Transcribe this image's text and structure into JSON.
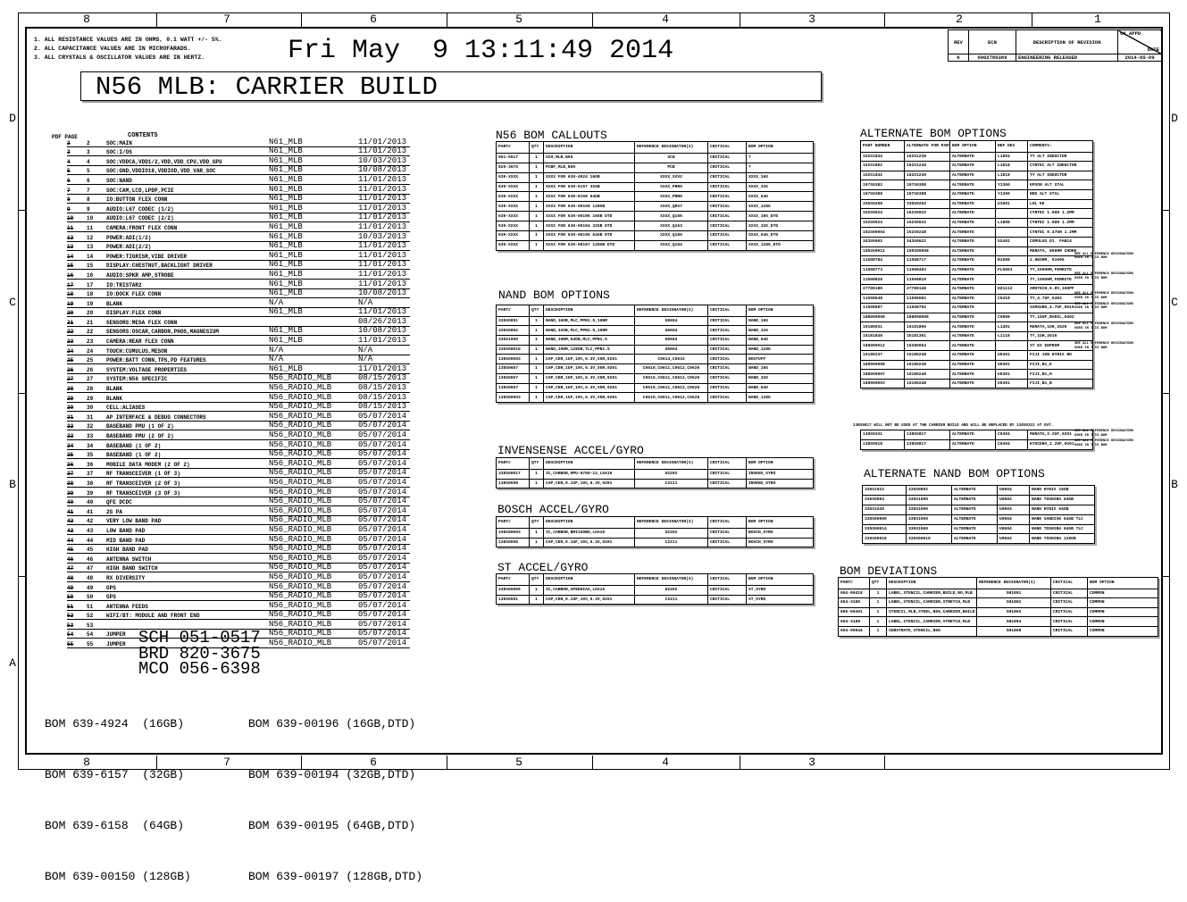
{
  "zones": {
    "top": [
      "8",
      "7",
      "6",
      "5",
      "4",
      "3",
      "2",
      "1"
    ],
    "bottom": [
      "8",
      "7",
      "6",
      "5",
      "4",
      "3"
    ],
    "left": [
      "D",
      "C",
      "B",
      "A"
    ],
    "right": [
      "D",
      "C",
      "B"
    ]
  },
  "notes": [
    "1. ALL RESISTANCE VALUES ARE IN OHMS, 0.1 WATT +/- 5%.",
    "2. ALL CAPACITANCE VALUES ARE IN MICROFARADS.",
    "3. ALL CRYSTALS & OSCILLATOR VALUES ARE IN HERTZ."
  ],
  "datetime": "Fri May  9 13:11:49 2014",
  "title": "N56 MLB: CARRIER BUILD",
  "revision": {
    "headers": [
      "REV",
      "ECN",
      "DESCRIPTION OF REVISION",
      "CK APPD",
      "DATE"
    ],
    "row": [
      "6",
      "0002780389",
      "ENGINEERING RELEASED",
      "2014-05-09"
    ]
  },
  "contents": {
    "header_pdf": "PDF PAGE",
    "header_contents": "CONTENTS",
    "rows": [
      [
        "2",
        "SOC:MAIN",
        "N61_MLB",
        "11/01/2013"
      ],
      [
        "3",
        "SOC:I/OS",
        "N61_MLB",
        "11/01/2013"
      ],
      [
        "4",
        "SOC:VDDCA,VDD1/2,VDD,VDD_CPU,VDD_GPU",
        "N61_MLB",
        "10/03/2013"
      ],
      [
        "5",
        "SOC:GND,VDDIO18,VDDIOD,VDD_VAR_SOC",
        "N61_MLB",
        "10/08/2013"
      ],
      [
        "6",
        "SOC:NAND",
        "N61_MLB",
        "11/01/2013"
      ],
      [
        "7",
        "SOC:CAM,LCD,LPDP,PCIE",
        "N61_MLB",
        "11/01/2013"
      ],
      [
        "8",
        "IO:BUTTON FLEX CONN",
        "N61_MLB",
        "11/01/2013"
      ],
      [
        "9",
        "AUDIO:L67 CODEC (1/2)",
        "N61_MLB",
        "11/01/2013"
      ],
      [
        "10",
        "AUDIO:L67 CODEC (2/2)",
        "N61_MLB",
        "11/01/2013"
      ],
      [
        "11",
        "CAMERA:FRONT FLEX CONN",
        "N61_MLB",
        "11/01/2013"
      ],
      [
        "12",
        "POWER:ADI(1/2)",
        "N61_MLB",
        "10/03/2013"
      ],
      [
        "13",
        "POWER:ADI(2/2)",
        "N61_MLB",
        "11/01/2013"
      ],
      [
        "14",
        "POWER:TIGRISR,VIBE DRIVER",
        "N61_MLB",
        "11/01/2013"
      ],
      [
        "15",
        "DISPLAY:CHESTNUT,BACKLIGHT DRIVER",
        "N61_MLB",
        "11/01/2013"
      ],
      [
        "16",
        "AUDIO:SPKR AMP,STROBE",
        "N61_MLB",
        "11/01/2013"
      ],
      [
        "17",
        "IO:TRISTAR2",
        "N61_MLB",
        "11/01/2013"
      ],
      [
        "18",
        "IO:DOCK FLEX CONN",
        "N61_MLB",
        "10/08/2013"
      ],
      [
        "19",
        "BLANK",
        "N/A",
        "N/A"
      ],
      [
        "20",
        "DISPLAY:FLEX CONN",
        "N61_MLB",
        "11/01/2013"
      ],
      [
        "21",
        "SENSORS:MESA FLEX CONN",
        "",
        "08/26/2013"
      ],
      [
        "22",
        "SENSORS:OSCAR,CARBON,PHOS,MAGNESIUM",
        "N61_MLB",
        "10/08/2013"
      ],
      [
        "23",
        "CAMERA:REAR FLEX CONN",
        "N61_MLB",
        "11/01/2013"
      ],
      [
        "24",
        "TOUCH:CUMULUS,MESON",
        "N/A",
        "N/A"
      ],
      [
        "25",
        "POWER:BATT CONN,TPS,PD FEATURES",
        "N/A",
        "N/A"
      ],
      [
        "26",
        "SYSTEM:VOLTAGE PROPERTIES",
        "N61_MLB",
        "11/01/2013"
      ],
      [
        "27",
        "SYSTEM:N56 SPECIFIC",
        "N56_RADIO_MLB",
        "08/15/2013"
      ],
      [
        "28",
        "BLANK",
        "N56_RADIO_MLB",
        "08/15/2013"
      ],
      [
        "29",
        "BLANK",
        "N56_RADIO_MLB",
        "08/15/2013"
      ],
      [
        "30",
        "CELL:ALIASES",
        "N56_RADIO_MLB",
        "08/15/2013"
      ],
      [
        "31",
        "AP INTERFACE & DEBUG CONNECTORS",
        "N56_RADIO_MLB",
        "05/07/2014"
      ],
      [
        "32",
        "BASEBAND PMU (1 OF 2)",
        "N56_RADIO_MLB",
        "05/07/2014"
      ],
      [
        "33",
        "BASEBAND PMU (2 OF 2)",
        "N56_RADIO_MLB",
        "05/07/2014"
      ],
      [
        "34",
        "BASEBAND (1 OF 2)",
        "N56_RADIO_MLB",
        "05/07/2014"
      ],
      [
        "35",
        "BASEBAND (1 OF 2)",
        "N56_RADIO_MLB",
        "05/07/2014"
      ],
      [
        "36",
        "MOBILE DATA MODEM (2 OF 2)",
        "N56_RADIO_MLB",
        "05/07/2014"
      ],
      [
        "37",
        "RF TRANSCEIVER (1 OF 3)",
        "N56_RADIO_MLB",
        "05/07/2014"
      ],
      [
        "38",
        "RF TRANSCEIVER (2 OF 3)",
        "N56_RADIO_MLB",
        "05/07/2014"
      ],
      [
        "39",
        "RF TRANSCEIVER (3 OF 3)",
        "N56_RADIO_MLB",
        "05/07/2014"
      ],
      [
        "40",
        "QFE DCDC",
        "N56_RADIO_MLB",
        "05/07/2014"
      ],
      [
        "41",
        "2G PA",
        "N56_RADIO_MLB",
        "05/07/2014"
      ],
      [
        "42",
        "VERY LOW BAND PAD",
        "N56_RADIO_MLB",
        "05/07/2014"
      ],
      [
        "43",
        "LOW BAND PAD",
        "N56_RADIO_MLB",
        "05/07/2014"
      ],
      [
        "44",
        "MID BAND PAD",
        "N56_RADIO_MLB",
        "05/07/2014"
      ],
      [
        "45",
        "HIGH BAND PAD",
        "N56_RADIO_MLB",
        "05/07/2014"
      ],
      [
        "46",
        "ANTENNA SWITCH",
        "N56_RADIO_MLB",
        "05/07/2014"
      ],
      [
        "47",
        "HIGH BAND SWITCH",
        "N56_RADIO_MLB",
        "05/07/2014"
      ],
      [
        "48",
        "RX DIVERSITY",
        "N56_RADIO_MLB",
        "05/07/2014"
      ],
      [
        "49",
        "GPS",
        "N56_RADIO_MLB",
        "05/07/2014"
      ],
      [
        "50",
        "GPS",
        "N56_RADIO_MLB",
        "05/07/2014"
      ],
      [
        "51",
        "ANTENNA FEEDS",
        "N56_RADIO_MLB",
        "05/07/2014"
      ],
      [
        "52",
        "WIFI/BT: MODULE AND FRONT END",
        "N56_RADIO_MLB",
        "05/07/2014"
      ],
      [
        "53",
        "",
        "N56_RADIO_MLB",
        "05/07/2014"
      ],
      [
        "54",
        "JUMPER",
        "N56_RADIO_MLB",
        "05/07/2014"
      ],
      [
        "55",
        "JUMPER",
        "N56_RADIO_MLB",
        "05/07/2014"
      ]
    ]
  },
  "bom_header": [
    "PART#",
    "QTY",
    "DESCRIPTION",
    "REFERENCE DESIGNATOR(S)",
    "CRITICAL",
    "BOM OPTION"
  ],
  "n56_bom_callouts": {
    "title": "N56 BOM CALLOUTS",
    "rows": [
      [
        "051-0517",
        "1",
        "SCH,MLB,N56",
        "SCH",
        "CRITICAL",
        "?"
      ],
      [
        "820-3675",
        "1",
        "PCBF,MLB,N56",
        "PCB",
        "CRITICAL",
        "?"
      ],
      [
        "639-XXXX",
        "1",
        "XXXX FOR 639-4924 16GB",
        "XXXX_XXV2",
        "CRITICAL",
        "XXXX_16G"
      ],
      [
        "639-XXXX",
        "1",
        "XXXX FOR 639-6157 32GB",
        "XXXX_PRR9",
        "CRITICAL",
        "XXXX_32G"
      ],
      [
        "639-XXXX",
        "1",
        "XXXX FOR 639-6158 64GB",
        "XXXX_PRR0",
        "CRITICAL",
        "XXXX_64G"
      ],
      [
        "639-XXXX",
        "1",
        "XXXX FOR 639-00150 128GB",
        "XXXX_Q0S7",
        "CRITICAL",
        "XXXX_128G"
      ],
      [
        "639-XXXX",
        "1",
        "XXXX FOR 639-00196 16GB DTD",
        "XXXX_Q166",
        "CRITICAL",
        "XXXX_16G_DTD"
      ],
      [
        "639-XXXX",
        "1",
        "XXXX FOR 639-00194 32GB DTD",
        "XXXX_Q163",
        "CRITICAL",
        "XXXX_32G_DTD"
      ],
      [
        "639-XXXX",
        "1",
        "XXXX FOR 639-00195 64GB DTD",
        "XXXX_Q165",
        "CRITICAL",
        "XXXX_64G_DTD"
      ],
      [
        "639-XXXX",
        "1",
        "XXXX FOR 639-00197 128GB DTD",
        "XXXX_Q164",
        "CRITICAL",
        "XXXX_128G_DTD"
      ]
    ]
  },
  "nand_bom_options": {
    "title": "NAND BOM OPTIONS",
    "rows": [
      [
        "335S0891",
        "1",
        "NAND,16GB,MLC,PPN1.5,19NM",
        "U0604",
        "CRITICAL",
        "NAND_16G"
      ],
      [
        "335S0892",
        "1",
        "NAND,32GB,MLC,PPN1.5,19NM",
        "U0604",
        "CRITICAL",
        "NAND_32G"
      ],
      [
        "335S1000",
        "1",
        "NAND,19NM,64GB,MLC,PPN1.5",
        "U0604",
        "CRITICAL",
        "NAND_64G"
      ],
      [
        "335S00010",
        "1",
        "NAND,19NM,128GB,TLC,PPN1.5",
        "U0604",
        "CRITICAL",
        "NAND_128G"
      ],
      [
        "138S00003",
        "1",
        "CAP,CER,1UF,10%,6.3V,X5R,0201",
        "C0614,C0633",
        "CRITICAL",
        "NOSTUFF"
      ],
      [
        "138S0657",
        "1",
        "CAP,CER,1UF,10%,6.3V,X5R,0201",
        "C0610,C0611,C0612,C0626",
        "CRITICAL",
        "NAND_16G"
      ],
      [
        "138S0657",
        "1",
        "CAP,CER,1UF,10%,6.3V,X5R,0201",
        "C0610,C0611,C0612,C0626",
        "CRITICAL",
        "NAND_32G"
      ],
      [
        "138S0657",
        "1",
        "CAP,CER,1UF,10%,6.3V,X5R,0201",
        "C0610,C0611,C0612,C0626",
        "CRITICAL",
        "NAND_64G"
      ],
      [
        "138S00003",
        "1",
        "CAP,CER,1UF,10%,6.3V,X5R,0201",
        "C0610,C0611,C0612,C0626",
        "CRITICAL",
        "NAND_128G"
      ]
    ]
  },
  "invensense": {
    "title": "INVENSENSE ACCEL/GYRO",
    "rows": [
      [
        "338S00017",
        "1",
        "IC,CARBON,MPU-6700-12,LGA16",
        "U2202",
        "CRITICAL",
        "INVENS_GYRO"
      ],
      [
        "138S0598",
        "1",
        "CAP,CER,0.1UF,10%,6.3V,0201",
        "C2211",
        "CRITICAL",
        "INVENS_GYRO"
      ]
    ]
  },
  "bosch": {
    "title": "BOSCH ACCEL/GYRO",
    "rows": [
      [
        "338S00003",
        "1",
        "IC,CARBON,BMI160BD,LGA16",
        "U2202",
        "CRITICAL",
        "BOSCH_GYRO"
      ],
      [
        "138S0598",
        "1",
        "CAP,CER,0.1UF,10%,6.3V,0201",
        "C2211",
        "CRITICAL",
        "BOSCH_GYRO"
      ]
    ]
  },
  "st": {
    "title": "ST ACCEL/GYRO",
    "rows": [
      [
        "338S00009",
        "1",
        "IC,CARBON,AP8D8IAA,LGA16",
        "U2202",
        "CRITICAL",
        "ST_GYRO"
      ],
      [
        "138S0591",
        "1",
        "CAP,CER,0.1UF,10%,6.3V,0201",
        "C2211",
        "CRITICAL",
        "ST_GYRO"
      ]
    ]
  },
  "alternate_bom_options": {
    "title": "ALTERNATE BOM OPTIONS",
    "header": [
      "PART NUMBER",
      "ALTERNATE FOR PART NUMBER",
      "BOM OPTION",
      "REF DES",
      "COMMENTS:"
    ],
    "rows": [
      [
        "152S1844",
        "152S1238",
        "ALTERNATE",
        "L1804",
        "TY ALT INDUCTOR",
        ""
      ],
      [
        "152S1802",
        "152S1249",
        "ALTERNATE",
        "L1818",
        "CYNTEC ALT INDUCTOR",
        ""
      ],
      [
        "152S1842",
        "152S1249",
        "ALTERNATE",
        "L1818",
        "TY ALT INDUCTOR",
        ""
      ],
      [
        "197S0382",
        "197S0388",
        "ALTERNATE",
        "Y1300",
        "EPSON ALT XTAL",
        ""
      ],
      [
        "197S0388",
        "197S0388",
        "ALTERNATE",
        "Y1300",
        "NDK ALT XTAL",
        ""
      ],
      [
        "335S0208",
        "335S0202",
        "ALTERNATE",
        "U1601",
        "LOL EE",
        ""
      ],
      [
        "152S0024",
        "152S0022",
        "ALTERNATE",
        "",
        "CYNTEC 1.0UH 1.2MM",
        ""
      ],
      [
        "152S0024",
        "152S0022",
        "ALTERNATE",
        "L1808",
        "CYNTEC 1.0UH 1.2MM",
        ""
      ],
      [
        "152S00004",
        "152S0248",
        "ALTERNATE",
        "",
        "CYNTEC 0.47UH 1.2MM",
        ""
      ],
      [
        "343S0602",
        "343S0622",
        "ALTERNATE",
        "U2401",
        "CUMULUS D1. FAB14",
        ""
      ],
      [
        "155S00012",
        "155S00008",
        "ALTERNATE",
        "",
        "MURATA, 850HM CHOKE",
        "SEE ALL REFERENCE DESIGNATORS USED IN THIS BOM"
      ],
      [
        "11508784",
        "11508717",
        "ALTERNATE",
        "R1008",
        "2.8KOHM, 01005",
        ""
      ],
      [
        "11508773",
        "11508483",
        "ALTERNATE",
        "FL0601",
        "TY,150OHM,FERRITE",
        "SEE ALL REFERENCE DESIGNATORS USED IN THIS BOM"
      ],
      [
        "11508828",
        "11508810",
        "ALTERNATE",
        "",
        "TY,150OHM,FERRITE",
        ""
      ],
      [
        "27780180",
        "27780140",
        "ALTERNATE",
        "DZ1112",
        "AMOTECH,6.8V,100PF",
        "SEE ALL REFERENCE DESIGNATORS USED IN THIS BOM"
      ],
      [
        "11508648",
        "11508682",
        "ALTERNATE",
        "C0318",
        "TY,4.7UF,0402",
        "SEE ALL REFERENCE DESIGNATORS USED IN THIS BOM"
      ],
      [
        "11508687",
        "11508702",
        "ALTERNATE",
        "",
        "SAMSUNG,4.7UF,0610",
        ""
      ],
      [
        "188000008",
        "188000008",
        "ALTERNATE",
        "C0808",
        "TY,15UF,RADIL,0402",
        "SEE ALL REFERENCE DESIGNATORS USED IN THIS BOM"
      ],
      [
        "15180031",
        "15181800",
        "ALTERNATE",
        "L1401",
        "MURATA,1UH,2520",
        ""
      ],
      [
        "15181848",
        "15181301",
        "ALTERNATE",
        "L1118",
        "TY,1UH,2016",
        "SEE ALL REFERENCE DESIGNATORS USED IN THIS BOM"
      ],
      [
        "188000012",
        "15280064",
        "ALTERNATE",
        "",
        "ST EX EEPROM",
        ""
      ],
      [
        "15180247",
        "15180248",
        "ALTERNATE",
        "U0301",
        "FIJI 1GB HYNIX BD",
        ""
      ],
      [
        "188000008",
        "15180248",
        "ALTERNATE",
        "U0301",
        "FIJI,B1,E",
        ""
      ],
      [
        "188000007",
        "15180248",
        "ALTERNATE",
        "U0301",
        "FIJI,B1,H",
        ""
      ],
      [
        "188000003",
        "15180248",
        "ALTERNATE",
        "U0301",
        "FIJI,B1,B",
        ""
      ]
    ]
  },
  "alt_note": "138S0817 WILL NOT BE USED AT THE CARRIER BUILD AND WILL BE REPLACED BY 138S0331 AT DVT.",
  "alt_extra_rows": [
    [
      "138S0331",
      "138S0817",
      "ALTERNATE",
      "C0304",
      "MURATA,2.2UF,0201",
      "SEE ALL REFERENCE DESIGNATORS USED IN THIS BOM"
    ],
    [
      "138S0018",
      "138S0817",
      "ALTERNATE",
      "C0304",
      "KYOCERA,2.2UF,0201",
      "SEE ALL REFERENCE DESIGNATORS USED IN THIS BOM"
    ]
  ],
  "alternate_nand": {
    "title": "ALTERNATE NAND BOM OPTIONS",
    "rows": [
      [
        "335S1022",
        "335S0892",
        "ALTERNATE",
        "U0604",
        "NAND HYNIX 16GB"
      ],
      [
        "335S0894",
        "335S1000",
        "ALTERNATE",
        "U0604",
        "NAND TOSHIBA 64GB"
      ],
      [
        "335S1040",
        "335S1000",
        "ALTERNATE",
        "U0604",
        "NAND HYNIX 64GB"
      ],
      [
        "335S00009",
        "335S1000",
        "ALTERNATE",
        "U0604",
        "NAND SANDISK 64GB TLC"
      ],
      [
        "335S00014",
        "335S1000",
        "ALTERNATE",
        "U0604",
        "NAND TOSHIBA 64GB TLC"
      ],
      [
        "335S00018",
        "335S00010",
        "ALTERNATE",
        "U0604",
        "NAND TOSHIBA 128GB"
      ]
    ]
  },
  "bom_deviations": {
    "title": "BOM DEVIATIONS",
    "rows": [
      [
        "604-00418",
        "1",
        "LABEL,STENCIL,CARRIER,BUILD,NO,MLB",
        "SH1801",
        "CRITICAL",
        "COMMON"
      ],
      [
        "604-3188",
        "1",
        "LABEL,STENCIL,CARRIER,STRETCH,MLB",
        "SH1802",
        "CRITICAL",
        "COMMON"
      ],
      [
        "806-00401",
        "1",
        "STENCIL,MLB,STEEL,N56,CARRIER,BUILD",
        "SH1803",
        "CRITICAL",
        "COMMON"
      ],
      [
        "604-3188",
        "1",
        "LABEL,STENCIL,CARRIER,STRETCH,MLB",
        "SH1804",
        "CRITICAL",
        "COMMON"
      ],
      [
        "604-00044",
        "1",
        "SUBSTRATE,STENCIL,N56",
        "SH1808",
        "CRITICAL",
        "COMMON"
      ]
    ]
  },
  "sch_numbers": [
    "SCH 051-0517",
    "BRD 820-3675",
    "MCO 056-6398"
  ],
  "bom_list_left": [
    "BOM 639-4924  (16GB)",
    "BOM 639-6157  (32GB)",
    "BOM 639-6158  (64GB)",
    "BOM 639-00150 (128GB)"
  ],
  "bom_list_right": [
    "BOM 639-00196 (16GB,DTD)",
    "BOM 639-00194 (32GB,DTD)",
    "BOM 639-00195 (64GB,DTD)",
    "BOM 639-00197 (128GB,DTD)"
  ]
}
